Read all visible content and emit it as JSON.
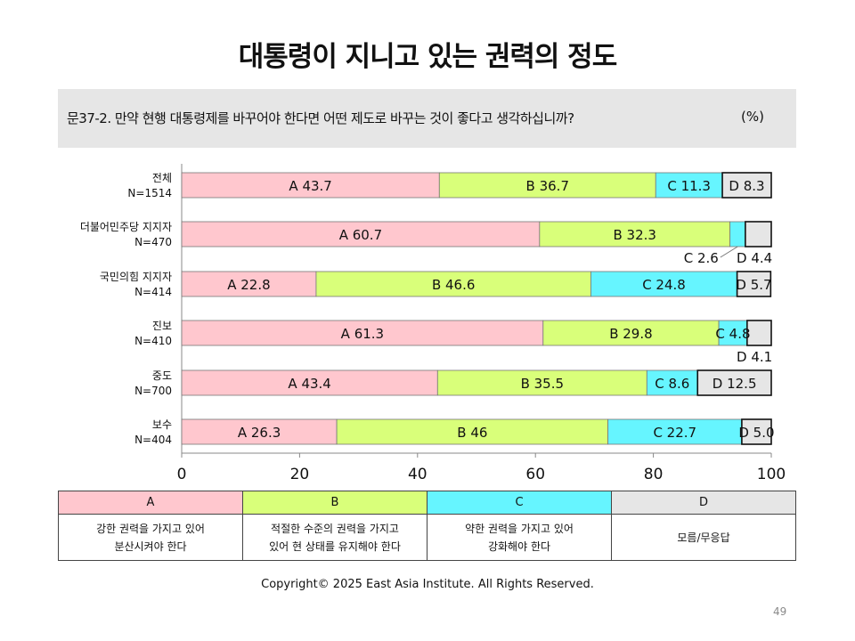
{
  "title": "대통령이 지니고 있는 권력의 정도",
  "question": {
    "text": "문37-2. 만약 현행 대통령제를 바꾸어야 한다면 어떤 제도로 바꾸는 것이 좋다고 생각하십니까?",
    "unit": "(%)"
  },
  "chart_data": {
    "type": "bar",
    "orientation": "horizontal",
    "stacked": true,
    "xlim": [
      0,
      100
    ],
    "xticks": [
      0,
      20,
      40,
      60,
      80,
      100
    ],
    "categories": [
      {
        "name": "전체",
        "n": "N=1514"
      },
      {
        "name": "더불어민주당  지지자",
        "n": "N=470"
      },
      {
        "name": "국민의힘 지지자",
        "n": "N=414"
      },
      {
        "name": "진보",
        "n": "N=410"
      },
      {
        "name": "중도",
        "n": "N=700"
      },
      {
        "name": "보수",
        "n": "N=404"
      }
    ],
    "series": [
      {
        "name": "A",
        "color": "#ffc7ce",
        "values": [
          43.7,
          60.7,
          22.8,
          61.3,
          43.4,
          26.3
        ],
        "labels": [
          "43.7",
          "60.7",
          "22.8",
          "61.3",
          "43.4",
          "26.3"
        ]
      },
      {
        "name": "B",
        "color": "#d9ff7a",
        "values": [
          36.7,
          32.3,
          46.6,
          29.8,
          35.5,
          46.0
        ],
        "labels": [
          "36.7",
          "32.3",
          "46.6",
          "29.8",
          "35.5",
          "46"
        ]
      },
      {
        "name": "C",
        "color": "#66f5ff",
        "values": [
          11.3,
          2.6,
          24.8,
          4.8,
          8.6,
          22.7
        ],
        "labels": [
          "11.3",
          "2.6",
          "24.8",
          "4.8",
          "8.6",
          "22.7"
        ]
      },
      {
        "name": "D",
        "color": "#e6e6e6",
        "values": [
          8.3,
          4.4,
          5.7,
          4.1,
          12.5,
          5.0
        ],
        "labels": [
          "8.3",
          "4.4",
          "5.7",
          "4.1",
          "12.5",
          "5.0"
        ]
      }
    ]
  },
  "legend": {
    "columns": [
      {
        "key": "A",
        "color": "#ffc7ce",
        "desc1": "강한 권력을 가지고 있어",
        "desc2": "분산시켜야 한다"
      },
      {
        "key": "B",
        "color": "#d9ff7a",
        "desc1": "적절한 수준의 권력을 가지고",
        "desc2": "있어 현 상태를 유지해야 한다"
      },
      {
        "key": "C",
        "color": "#66f5ff",
        "desc1": "약한 권력을 가지고 있어",
        "desc2": "강화해야 한다"
      },
      {
        "key": "D",
        "color": "#e6e6e6",
        "desc1": "모름/무응답",
        "desc2": ""
      }
    ]
  },
  "copyright": "Copyright© 2025 East Asia Institute. All Rights Reserved.",
  "page_number": "49"
}
